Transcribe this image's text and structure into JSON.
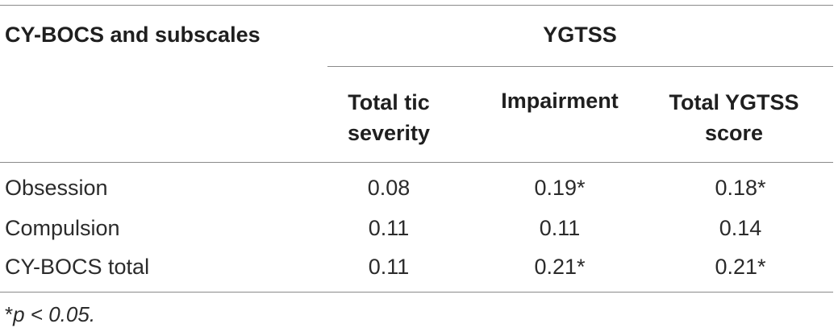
{
  "table": {
    "stub_header": "CY-BOCS and subscales",
    "group_header": "YGTSS",
    "columns": [
      {
        "line1": "Total tic",
        "line2": "severity"
      },
      {
        "line1": "Impairment",
        "line2": ""
      },
      {
        "line1": "Total YGTSS",
        "line2": "score"
      }
    ],
    "rows": [
      {
        "label": "Obsession",
        "values": [
          "0.08",
          "0.19*",
          "0.18*"
        ]
      },
      {
        "label": "Compulsion",
        "values": [
          "0.11",
          "0.11",
          "0.14"
        ]
      },
      {
        "label": "CY-BOCS total",
        "values": [
          "0.11",
          "0.21*",
          "0.21*"
        ]
      }
    ],
    "footnote": {
      "marker": "*",
      "text": "p < 0.05."
    }
  }
}
